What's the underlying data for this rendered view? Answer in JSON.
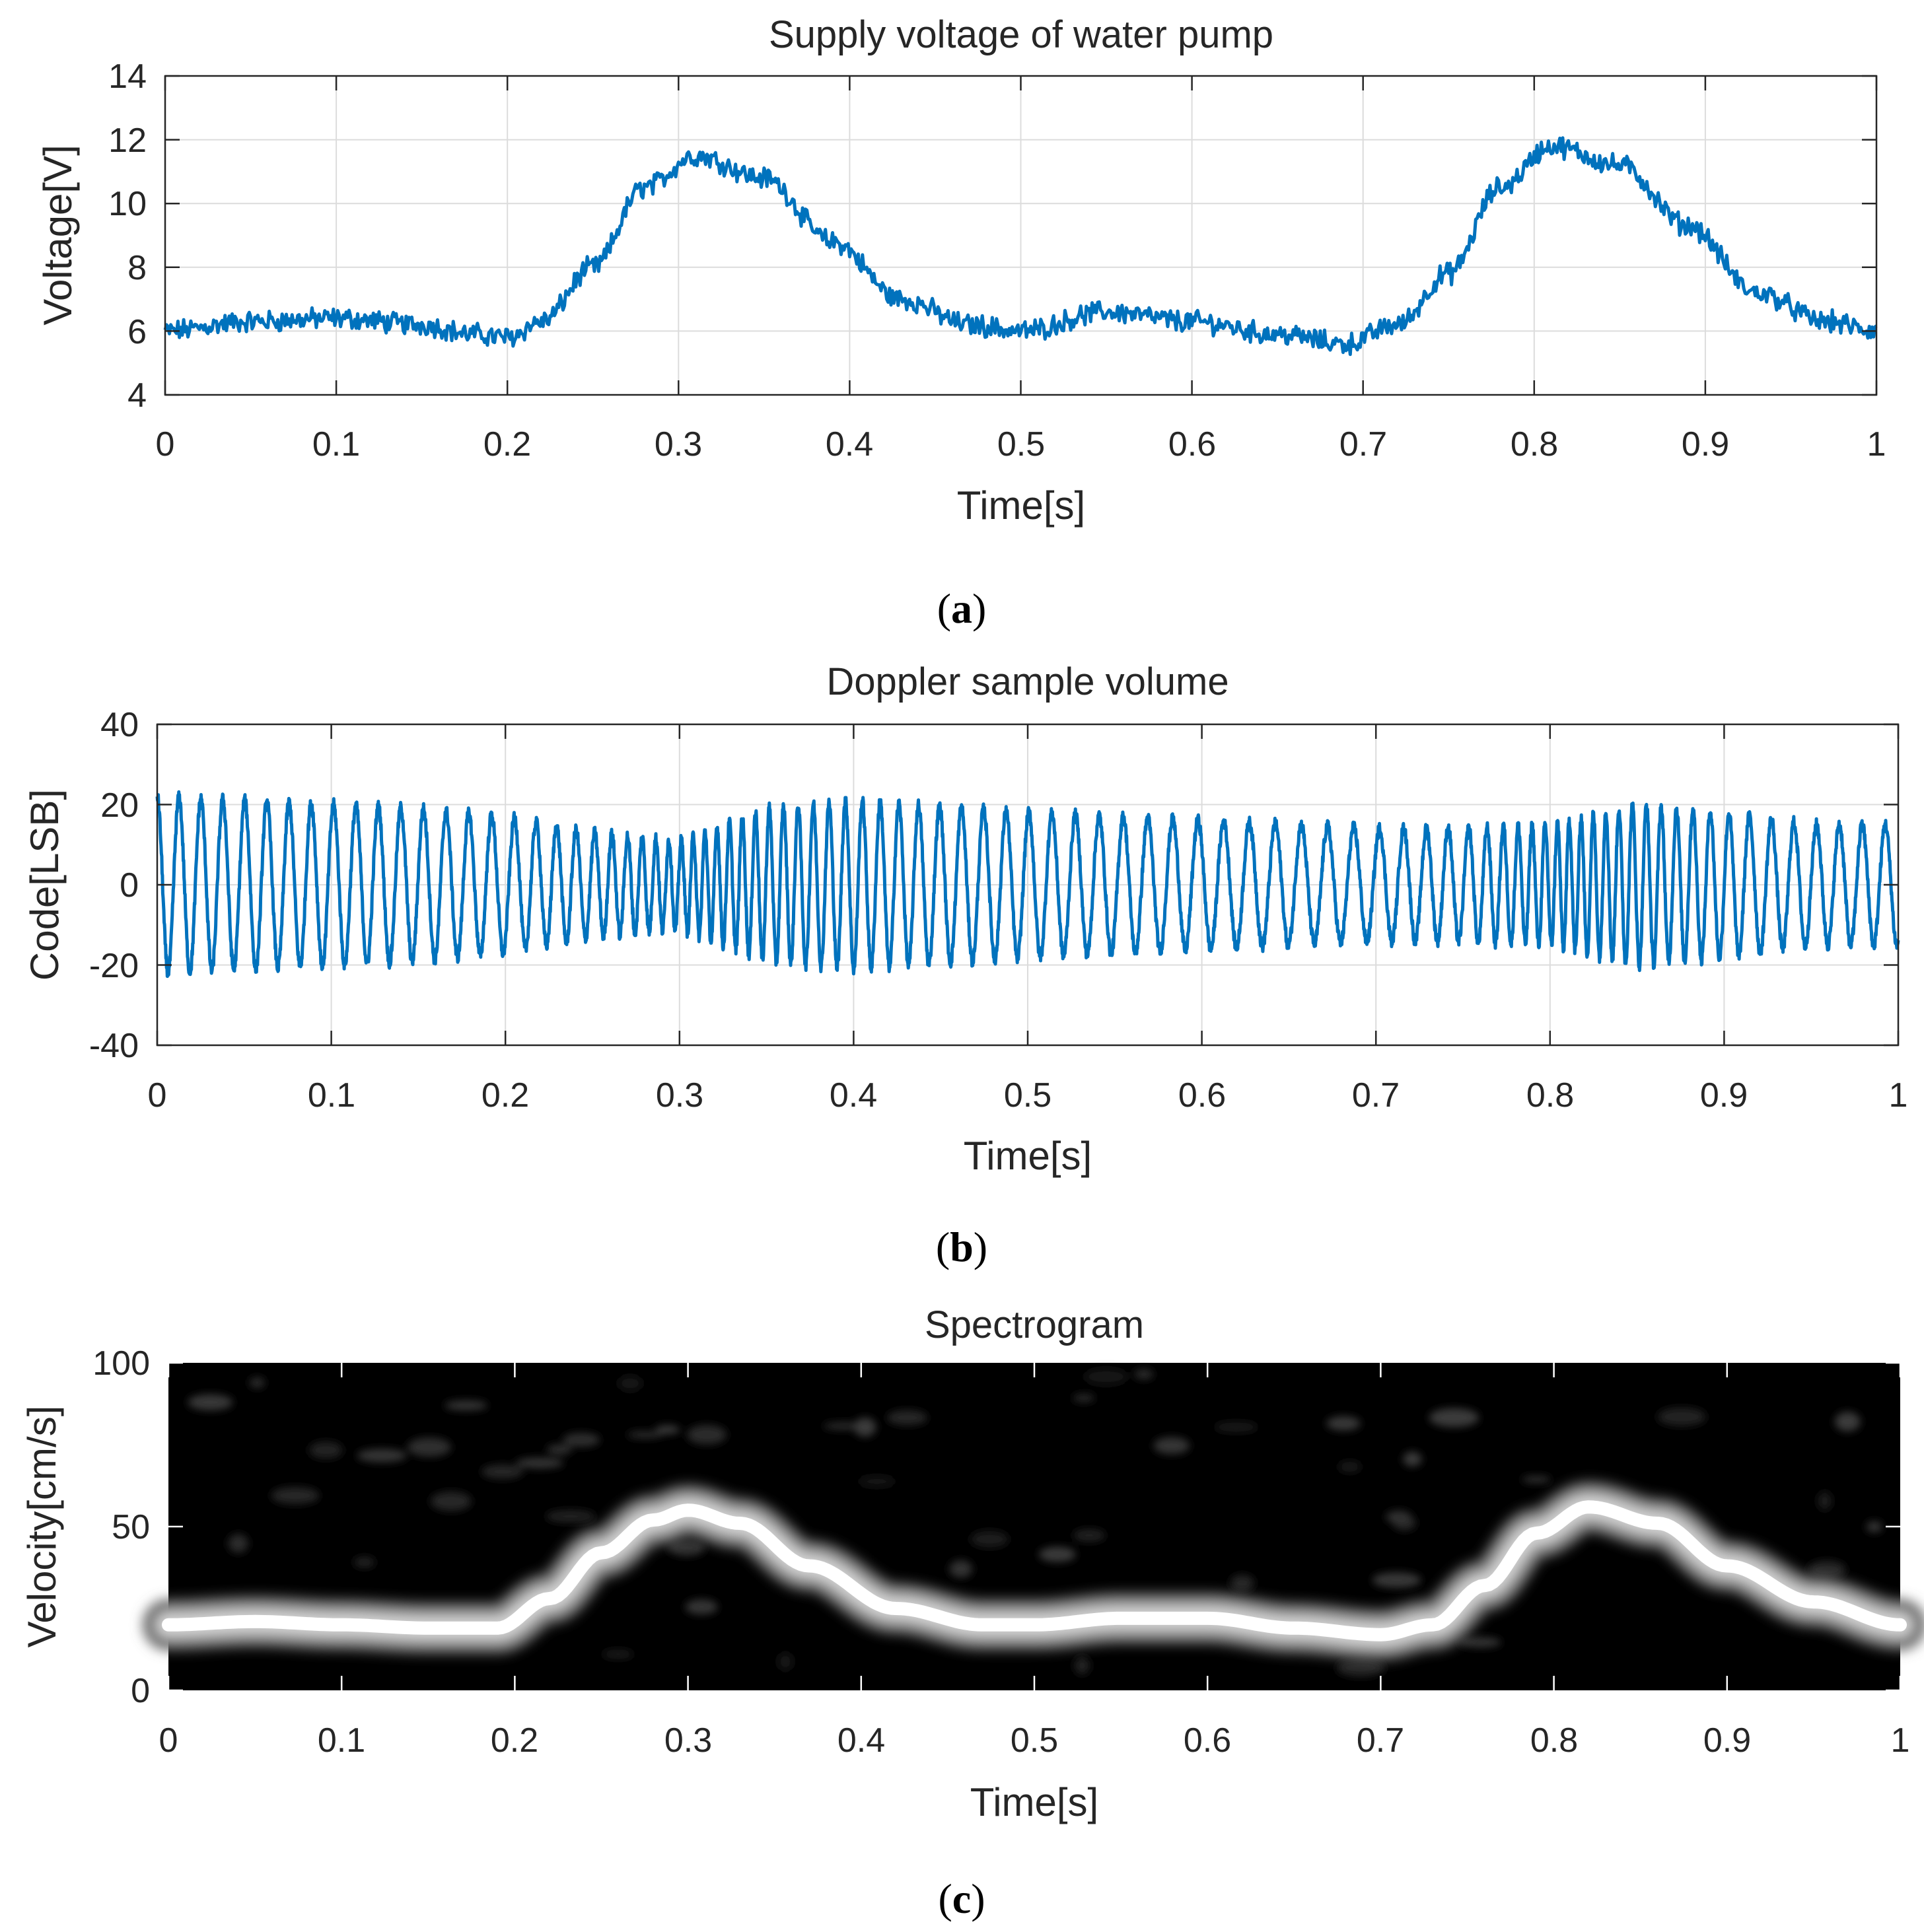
{
  "colors": {
    "series": "#0072bd",
    "axis": "#262626",
    "grid": "#dcdcdc",
    "spectrogram_background": "#000000",
    "spectrogram_ridge": "#ffffff"
  },
  "chart_data": [
    {
      "id": "a",
      "type": "line",
      "title": "Supply voltage of water pump",
      "xlabel": "Time[s]",
      "ylabel": "Voltage[V]",
      "xlim": [
        0,
        1
      ],
      "ylim": [
        4,
        14
      ],
      "xticks": [
        0,
        0.1,
        0.2,
        0.3,
        0.4,
        0.5,
        0.6,
        0.7,
        0.8,
        0.9,
        1
      ],
      "yticks": [
        4,
        6,
        8,
        10,
        12,
        14
      ],
      "xticklabels": [
        "0",
        "0.1",
        "0.2",
        "0.3",
        "0.4",
        "0.5",
        "0.6",
        "0.7",
        "0.8",
        "0.9",
        "1"
      ],
      "yticklabels": [
        "4",
        "6",
        "8",
        "10",
        "12",
        "14"
      ],
      "grid": true,
      "caption": "a",
      "series": [
        {
          "x": [
            0,
            0.05,
            0.1,
            0.15,
            0.18,
            0.2,
            0.22,
            0.25,
            0.28,
            0.31,
            0.35,
            0.39,
            0.43,
            0.47,
            0.5,
            0.55,
            0.6,
            0.65,
            0.69,
            0.72,
            0.75,
            0.78,
            0.81,
            0.85,
            0.89,
            0.93,
            0.97,
            1
          ],
          "y": [
            6.0,
            6.3,
            6.4,
            6.2,
            5.9,
            5.8,
            6.3,
            8.0,
            10.5,
            11.5,
            10.8,
            8.8,
            7.0,
            6.2,
            6.0,
            6.6,
            6.3,
            5.9,
            5.6,
            6.2,
            7.8,
            10.5,
            11.8,
            11.2,
            9.3,
            7.2,
            6.3,
            6.0
          ]
        }
      ]
    },
    {
      "id": "b",
      "type": "line",
      "title": "Doppler sample volume",
      "xlabel": "Time[s]",
      "ylabel": "Code[LSB]",
      "xlim": [
        0,
        1
      ],
      "ylim": [
        -40,
        40
      ],
      "xticks": [
        0,
        0.1,
        0.2,
        0.3,
        0.4,
        0.5,
        0.6,
        0.7,
        0.8,
        0.9,
        1
      ],
      "yticks": [
        -40,
        -20,
        0,
        20,
        40
      ],
      "xticklabels": [
        "0",
        "0.1",
        "0.2",
        "0.3",
        "0.4",
        "0.5",
        "0.6",
        "0.7",
        "0.8",
        "0.9",
        "1"
      ],
      "yticklabels": [
        "-40",
        "-20",
        "0",
        "20",
        "40"
      ],
      "grid": true,
      "caption": "b",
      "series": [
        {
          "signal": "amplitude-modulated oscillation",
          "envelope": {
            "t": [
              0,
              0.05,
              0.15,
              0.2,
              0.25,
              0.3,
              0.35,
              0.4,
              0.5,
              0.6,
              0.7,
              0.75,
              0.8,
              0.85,
              0.9,
              0.95,
              1
            ],
            "amplitude": [
              22,
              21,
              19,
              17,
              13,
              11,
              19,
              21,
              18,
              16,
              14,
              14,
              15,
              20,
              18,
              15,
              15
            ]
          },
          "frequency": {
            "t": [
              0,
              0.1,
              0.2,
              0.25,
              0.28,
              0.31,
              0.35,
              0.45,
              0.6,
              0.69,
              0.75,
              0.78,
              0.81,
              0.85,
              0.92,
              1
            ],
            "hz": [
              80,
              78,
              76,
              95,
              125,
              150,
              125,
              80,
              68,
              66,
              85,
              120,
              150,
              125,
              78,
              75
            ]
          }
        }
      ]
    },
    {
      "id": "c",
      "type": "heatmap",
      "title": "Spectrogram",
      "xlabel": "Time[s]",
      "ylabel": "Velocity[cm/s]",
      "xlim": [
        0,
        1
      ],
      "ylim": [
        0,
        100
      ],
      "xticks": [
        0,
        0.1,
        0.2,
        0.3,
        0.4,
        0.5,
        0.6,
        0.7,
        0.8,
        0.9,
        1
      ],
      "yticks": [
        0,
        50,
        100
      ],
      "xticklabels": [
        "0",
        "0.1",
        "0.2",
        "0.3",
        "0.4",
        "0.5",
        "0.6",
        "0.7",
        "0.8",
        "0.9",
        "1"
      ],
      "yticklabels": [
        "0",
        "50",
        "100"
      ],
      "colormap": "gray",
      "caption": "c",
      "ridge": {
        "x": [
          0,
          0.05,
          0.1,
          0.15,
          0.19,
          0.22,
          0.25,
          0.28,
          0.3,
          0.33,
          0.37,
          0.42,
          0.47,
          0.5,
          0.55,
          0.6,
          0.65,
          0.7,
          0.73,
          0.76,
          0.79,
          0.82,
          0.86,
          0.9,
          0.95,
          1
        ],
        "y": [
          20,
          21,
          20,
          19,
          19,
          28,
          42,
          52,
          55,
          51,
          38,
          25,
          20,
          20,
          22,
          22,
          19,
          17,
          20,
          32,
          48,
          56,
          51,
          38,
          27,
          20
        ]
      }
    }
  ]
}
